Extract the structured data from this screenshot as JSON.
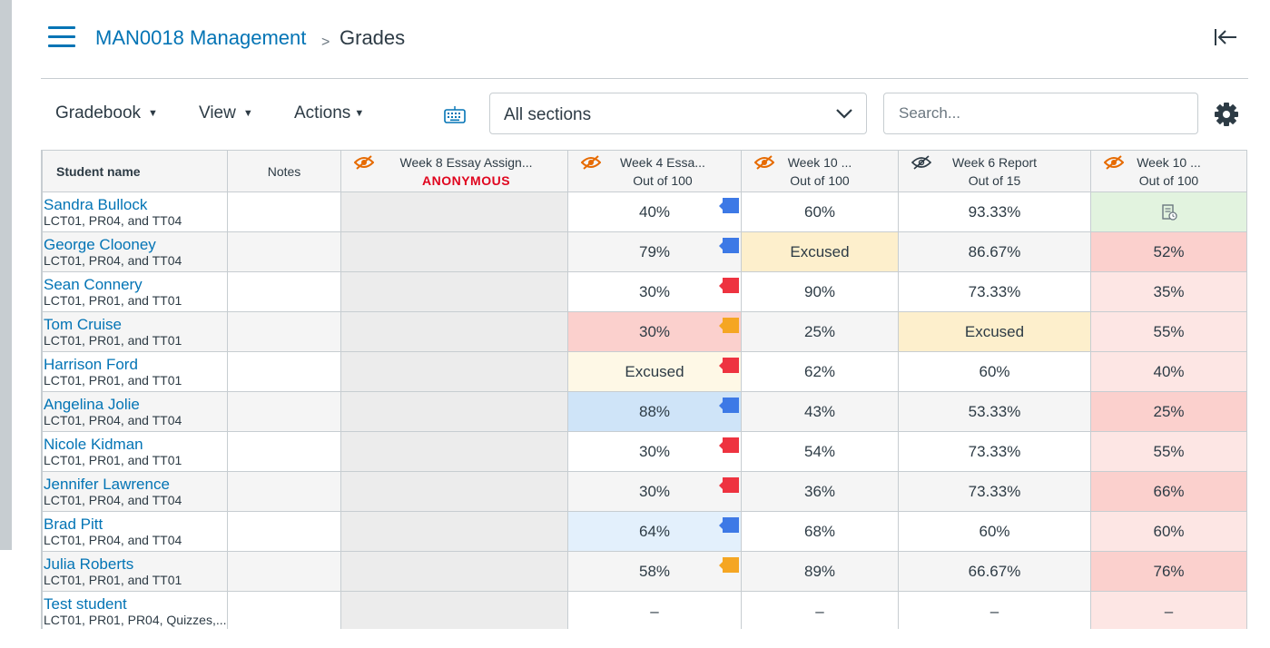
{
  "breadcrumb": {
    "course": "MAN0018 Management",
    "separator": ">",
    "current": "Grades"
  },
  "toolbar": {
    "gradebook_label": "Gradebook",
    "view_label": "View",
    "actions_label": "Actions",
    "section_select_value": "All sections",
    "search_placeholder": "Search..."
  },
  "colors": {
    "link": "#0374b5",
    "hidden_icon": "#e66a00",
    "anonymous": "#e0061f",
    "flag_blue": "#3d79e6",
    "flag_red": "#ee3340",
    "flag_orange": "#f5a623",
    "excused_bg": "#fff0cf",
    "missing_bg": "#fdd7d4",
    "dropped_bg": "#d1e5f8",
    "resubmitted_bg": "#e4f4e2"
  },
  "columns": [
    {
      "title": "Student name"
    },
    {
      "title": "Notes"
    },
    {
      "title": "Week 8 Essay Assign...",
      "subtitle": "ANONYMOUS",
      "icon": "eye-slash-orange-icon"
    },
    {
      "title": "Week 4 Essa...",
      "subtitle": "Out of 100",
      "icon": "eye-slash-orange-icon"
    },
    {
      "title": "Week 10 ...",
      "subtitle": "Out of 100",
      "icon": "eye-slash-orange-icon"
    },
    {
      "title": "Week 6 Report",
      "subtitle": "Out of 15",
      "icon": "eye-slash-grey-icon"
    },
    {
      "title": "Week 10 ...",
      "subtitle": "Out of 100",
      "icon": "eye-slash-orange-icon"
    }
  ],
  "students": [
    {
      "name": "Sandra Bullock",
      "sections": "LCT01, PR04, and TT04",
      "grades": [
        {
          "v": "40%",
          "flag": "blue"
        },
        {
          "v": "60%"
        },
        {
          "v": "93.33%"
        },
        {
          "v": "",
          "icon": "resubmitted-icon",
          "bg": "green"
        }
      ]
    },
    {
      "name": "George Clooney",
      "sections": "LCT01, PR04, and TT04",
      "grades": [
        {
          "v": "79%",
          "flag": "blue"
        },
        {
          "v": "Excused",
          "bg": "excused"
        },
        {
          "v": "86.67%"
        },
        {
          "v": "52%",
          "bg": "red"
        }
      ]
    },
    {
      "name": "Sean Connery",
      "sections": "LCT01, PR01, and TT01",
      "grades": [
        {
          "v": "30%",
          "flag": "red"
        },
        {
          "v": "90%"
        },
        {
          "v": "73.33%"
        },
        {
          "v": "35%",
          "bg": "lightred"
        }
      ]
    },
    {
      "name": "Tom Cruise",
      "sections": "LCT01, PR01, and TT01",
      "grades": [
        {
          "v": "30%",
          "flag": "orange",
          "bg": "red"
        },
        {
          "v": "25%"
        },
        {
          "v": "Excused",
          "bg": "excused"
        },
        {
          "v": "55%",
          "bg": "lightred"
        }
      ]
    },
    {
      "name": "Harrison Ford",
      "sections": "LCT01, PR01, and TT01",
      "grades": [
        {
          "v": "Excused",
          "flag": "red",
          "bg": "excusedlight"
        },
        {
          "v": "62%"
        },
        {
          "v": "60%"
        },
        {
          "v": "40%",
          "bg": "lightred"
        }
      ]
    },
    {
      "name": "Angelina Jolie",
      "sections": "LCT01, PR04, and TT04",
      "grades": [
        {
          "v": "88%",
          "flag": "blue",
          "bg": "blue"
        },
        {
          "v": "43%"
        },
        {
          "v": "53.33%"
        },
        {
          "v": "25%",
          "bg": "red"
        }
      ]
    },
    {
      "name": "Nicole Kidman",
      "sections": "LCT01, PR01, and TT01",
      "grades": [
        {
          "v": "30%",
          "flag": "red"
        },
        {
          "v": "54%"
        },
        {
          "v": "73.33%"
        },
        {
          "v": "55%",
          "bg": "lightred"
        }
      ]
    },
    {
      "name": "Jennifer Lawrence",
      "sections": "LCT01, PR04, and TT04",
      "grades": [
        {
          "v": "30%",
          "flag": "red"
        },
        {
          "v": "36%"
        },
        {
          "v": "73.33%"
        },
        {
          "v": "66%",
          "bg": "red"
        }
      ]
    },
    {
      "name": "Brad Pitt",
      "sections": "LCT01, PR04, and TT04",
      "grades": [
        {
          "v": "64%",
          "flag": "blue",
          "bg": "lightblue"
        },
        {
          "v": "68%"
        },
        {
          "v": "60%"
        },
        {
          "v": "60%",
          "bg": "lightred"
        }
      ]
    },
    {
      "name": "Julia Roberts",
      "sections": "LCT01, PR01, and TT01",
      "grades": [
        {
          "v": "58%",
          "flag": "orange"
        },
        {
          "v": "89%"
        },
        {
          "v": "66.67%"
        },
        {
          "v": "76%",
          "bg": "red"
        }
      ]
    },
    {
      "name": "Test student",
      "sections": "LCT01, PR01, PR04, Quizzes,...",
      "grades": [
        {
          "v": "–"
        },
        {
          "v": "–"
        },
        {
          "v": "–"
        },
        {
          "v": "–",
          "bg": "lightred"
        }
      ]
    }
  ]
}
